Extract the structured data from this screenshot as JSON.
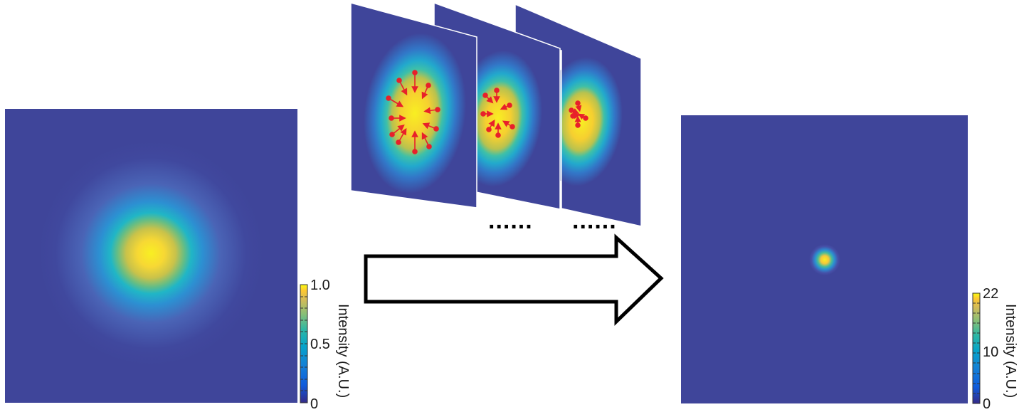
{
  "colors": {
    "background_field": "#3f459a",
    "mid": "#22a7c8",
    "high": "#f4c83a",
    "peak": "#f8f01e",
    "arrow_red": "#e8202a",
    "outline": "#000000"
  },
  "input_beam": {
    "colorbar": {
      "ticks": [
        "1.0",
        "0.5",
        "0"
      ],
      "title": "Intensity (A.U.)"
    }
  },
  "output_beam": {
    "colorbar": {
      "ticks": [
        "22",
        "10",
        "0"
      ],
      "title": "Intensity (A.U.)"
    }
  },
  "frames": {
    "continuation_marks": [
      "......",
      "......"
    ]
  }
}
